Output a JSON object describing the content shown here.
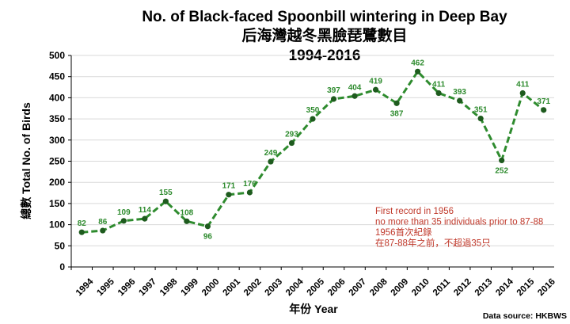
{
  "chart_data": {
    "type": "line",
    "title": "No. of Black-faced Spoonbill wintering in Deep Bay",
    "subtitle": "后海灣越冬黑臉琵鷺數目",
    "period": "1994-2016",
    "xlabel": "年份 Year",
    "ylabel": "總數 Total No. of Birds",
    "ylim": [
      0,
      500
    ],
    "yticks": [
      0,
      50,
      100,
      150,
      200,
      250,
      300,
      350,
      400,
      450,
      500
    ],
    "grid": true,
    "x": [
      "1994",
      "1995",
      "1996",
      "1997",
      "1998",
      "1999",
      "2000",
      "2001",
      "2002",
      "2003",
      "2004",
      "2005",
      "2006",
      "2007",
      "2008",
      "2009",
      "2010",
      "2011",
      "2012",
      "2013",
      "2014",
      "2015",
      "2016"
    ],
    "series": [
      {
        "values": [
          82,
          86,
          109,
          114,
          155,
          108,
          96,
          171,
          176,
          249,
          293,
          350,
          397,
          404,
          419,
          387,
          462,
          411,
          393,
          351,
          252,
          411,
          371
        ]
      }
    ],
    "line_color": "#2e8b2e",
    "marker_color": "#1e5b1e",
    "annotation_lines": [
      "First record in 1956",
      "no more than 35 individuals prior to 87-88",
      "1956首次紀錄",
      "在87-88年之前，不超過35只"
    ],
    "annotation_color": "#c0392b",
    "source": "Data source: HKBWS"
  }
}
